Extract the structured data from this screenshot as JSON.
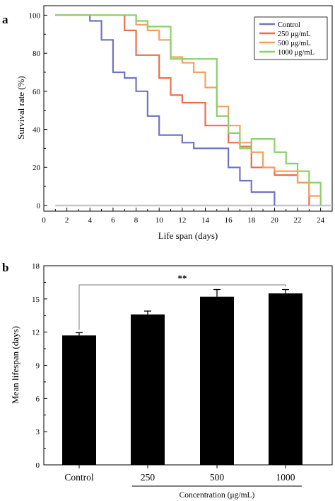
{
  "panel_labels": [
    "a",
    "b"
  ],
  "chart_data": [
    {
      "type": "line",
      "step": true,
      "xlabel": "Life span (days)",
      "ylabel": "Survival rate (%)",
      "xlim": [
        0,
        25
      ],
      "ylim": [
        -3,
        105
      ],
      "xticks": [
        0,
        2,
        4,
        6,
        8,
        10,
        12,
        14,
        16,
        18,
        20,
        22,
        24
      ],
      "yticks": [
        0,
        20,
        40,
        60,
        80,
        100
      ],
      "legend_position": "top-right",
      "baseline": {
        "y": 0,
        "x_range": [
          1,
          25
        ],
        "color": "#c8c8c8"
      },
      "series": [
        {
          "name": "Control",
          "color": "#6f74c2",
          "x": [
            1,
            4,
            5,
            6,
            7,
            8,
            9,
            10,
            12,
            13,
            16,
            17,
            18,
            20
          ],
          "y": [
            100,
            97,
            87,
            70,
            67,
            60,
            47,
            37,
            33,
            30,
            20,
            13,
            7,
            0
          ]
        },
        {
          "name": "250 μg/mL",
          "color": "#ea6f4c",
          "x": [
            1,
            7,
            8,
            10,
            11,
            12,
            14,
            16,
            17,
            18,
            20,
            22,
            23
          ],
          "y": [
            100,
            92,
            79,
            67,
            58,
            54,
            42,
            33,
            31,
            20,
            16,
            12,
            0
          ]
        },
        {
          "name": "500 μg/mL",
          "color": "#f5a05e",
          "x": [
            1,
            8,
            9,
            10,
            11,
            12,
            13,
            14,
            15,
            16,
            17,
            18,
            19,
            20,
            22,
            23,
            24
          ],
          "y": [
            100,
            95,
            92,
            87,
            78,
            75,
            70,
            62,
            52,
            42,
            33,
            28,
            20,
            18,
            12,
            5,
            0
          ]
        },
        {
          "name": "1000 μg/mL",
          "color": "#8ccf6a",
          "x": [
            1,
            8,
            9,
            11,
            15,
            16,
            17,
            18,
            20,
            21,
            22,
            23,
            24
          ],
          "y": [
            100,
            97,
            94,
            77,
            47,
            38,
            30,
            35,
            28,
            22,
            18,
            12,
            0
          ]
        }
      ]
    },
    {
      "type": "bar",
      "ylabel": "Mean lifespan (days)",
      "ylim": [
        0,
        18
      ],
      "yticks": [
        0,
        3,
        6,
        9,
        12,
        15,
        18
      ],
      "categories": [
        "Control",
        "250",
        "500",
        "1000"
      ],
      "values": [
        11.7,
        13.6,
        15.2,
        15.5
      ],
      "errors": [
        0.25,
        0.3,
        0.65,
        0.35
      ],
      "bar_color": "#000000",
      "group_label": "Concentration (μg/mL)",
      "significance": {
        "between": [
          "Control",
          "1000"
        ],
        "label": "**"
      }
    }
  ]
}
